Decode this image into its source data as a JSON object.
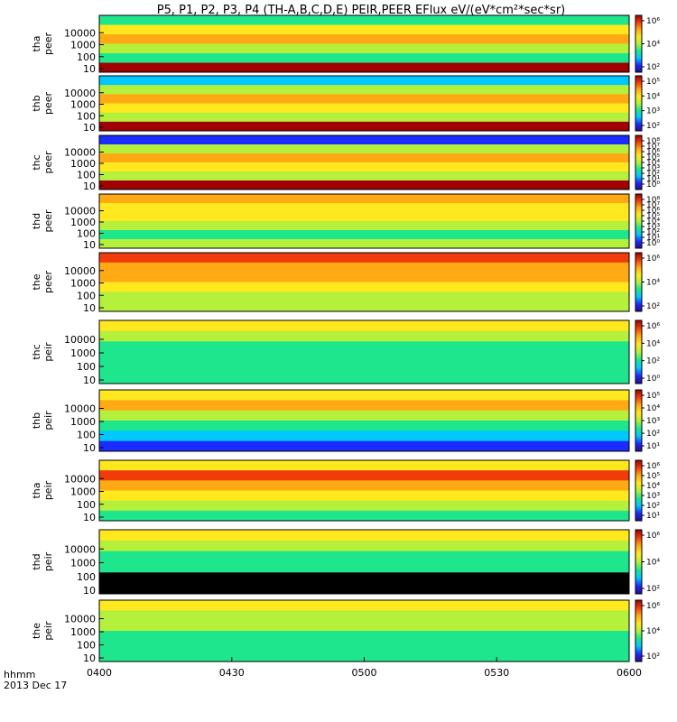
{
  "chart_data": {
    "type": "heatmap",
    "title": "P5, P1, P2, P3, P4 (TH-A,B,C,D,E) PEIR,PEER EFlux eV/(eV*cm²*sec*sr)",
    "x_axis": {
      "unit_label": "hhmm",
      "date_label": "2013 Dec 17",
      "ticks": [
        "0400",
        "0430",
        "0500",
        "0530",
        "0600"
      ],
      "range": [
        "0400",
        "0600"
      ]
    },
    "colormap": [
      "#2b0a8e",
      "#1a2cff",
      "#00c8ff",
      "#1ee68c",
      "#b4f03c",
      "#ffe81e",
      "#ffaa14",
      "#f03c0a",
      "#a00000"
    ],
    "panels": [
      {
        "id": "tha-peer",
        "label_line1": "tha",
        "label_line2": "peer",
        "y_ticks": [
          "10",
          "100",
          "1000",
          "10000"
        ],
        "cbar_ticks": [
          "10²",
          "10⁴",
          "10⁶"
        ],
        "colors": [
          "#1ee68c",
          "#ffe81e",
          "#ffaa14",
          "#b4f03c",
          "#1ee68c",
          "#a00000"
        ]
      },
      {
        "id": "thb-peer",
        "label_line1": "thb",
        "label_line2": "peer",
        "y_ticks": [
          "10",
          "100",
          "1000",
          "10000"
        ],
        "cbar_ticks": [
          "10²",
          "10³",
          "10⁴",
          "10⁵"
        ],
        "colors": [
          "#00c8ff",
          "#b4f03c",
          "#ffaa14",
          "#ffe81e",
          "#b4f03c",
          "#a00000"
        ]
      },
      {
        "id": "thc-peer",
        "label_line1": "thc",
        "label_line2": "peer",
        "y_ticks": [
          "10",
          "100",
          "1000",
          "10000"
        ],
        "cbar_ticks": [
          "10⁰",
          "10¹",
          "10²",
          "10³",
          "10⁴",
          "10⁵",
          "10⁶",
          "10⁷",
          "10⁸"
        ],
        "colors": [
          "#1a2cff",
          "#b4f03c",
          "#ffaa14",
          "#ffe81e",
          "#b4f03c",
          "#a00000"
        ]
      },
      {
        "id": "thd-peer",
        "label_line1": "thd",
        "label_line2": "peer",
        "y_ticks": [
          "10",
          "100",
          "1000",
          "10000"
        ],
        "cbar_ticks": [
          "10⁰",
          "10¹",
          "10²",
          "10³",
          "10⁴",
          "10⁵",
          "10⁶",
          "10⁷",
          "10⁸"
        ],
        "colors": [
          "#ffaa14",
          "#ffe81e",
          "#ffe81e",
          "#b4f03c",
          "#1ee68c",
          "#b4f03c"
        ]
      },
      {
        "id": "the-peer",
        "label_line1": "the",
        "label_line2": "peer",
        "y_ticks": [
          "10",
          "100",
          "1000",
          "10000"
        ],
        "cbar_ticks": [
          "10²",
          "10⁴",
          "10⁶"
        ],
        "colors": [
          "#f03c0a",
          "#ffaa14",
          "#ffaa14",
          "#ffe81e",
          "#b4f03c",
          "#b4f03c"
        ]
      },
      {
        "id": "thc-peir",
        "label_line1": "thc",
        "label_line2": "peir",
        "y_ticks": [
          "10",
          "100",
          "1000",
          "10000"
        ],
        "cbar_ticks": [
          "10⁰",
          "10²",
          "10⁴",
          "10⁶"
        ],
        "colors": [
          "#ffe81e",
          "#b4f03c",
          "#1ee68c",
          "#1ee68c",
          "#1ee68c",
          "#1ee68c"
        ]
      },
      {
        "id": "thb-peir",
        "label_line1": "thb",
        "label_line2": "peir",
        "y_ticks": [
          "10",
          "100",
          "1000",
          "10000"
        ],
        "cbar_ticks": [
          "10¹",
          "10²",
          "10³",
          "10⁴",
          "10⁵"
        ],
        "colors": [
          "#ffe81e",
          "#ffaa14",
          "#b4f03c",
          "#1ee68c",
          "#00c8ff",
          "#1a2cff"
        ]
      },
      {
        "id": "tha-peir",
        "label_line1": "tha",
        "label_line2": "peir",
        "y_ticks": [
          "10",
          "100",
          "1000",
          "10000"
        ],
        "cbar_ticks": [
          "10¹",
          "10²",
          "10³",
          "10⁴",
          "10⁵",
          "10⁶"
        ],
        "colors": [
          "#ffe81e",
          "#f03c0a",
          "#ffaa14",
          "#ffe81e",
          "#b4f03c",
          "#1ee68c"
        ]
      },
      {
        "id": "thd-peir",
        "label_line1": "thd",
        "label_line2": "peir",
        "y_ticks": [
          "10",
          "100",
          "1000",
          "10000"
        ],
        "cbar_ticks": [
          "10²",
          "10⁴",
          "10⁶"
        ],
        "colors": [
          "#ffe81e",
          "#b4f03c",
          "#1ee68c",
          "#1ee68c",
          "#000000",
          "#000000"
        ]
      },
      {
        "id": "the-peir",
        "label_line1": "the",
        "label_line2": "peir",
        "y_ticks": [
          "10",
          "100",
          "1000",
          "10000"
        ],
        "cbar_ticks": [
          "10²",
          "10⁴",
          "10⁶"
        ],
        "colors": [
          "#ffe81e",
          "#b4f03c",
          "#b4f03c",
          "#1ee68c",
          "#1ee68c",
          "#1ee68c"
        ]
      }
    ]
  }
}
